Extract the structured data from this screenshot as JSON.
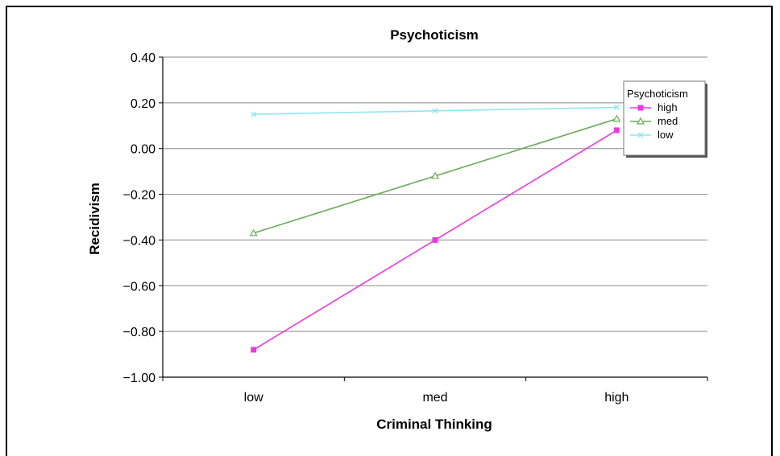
{
  "chart_data": {
    "type": "line",
    "title": "Psychoticism",
    "xlabel": "Criminal Thinking",
    "ylabel": "Recidivism",
    "categories": [
      "low",
      "med",
      "high"
    ],
    "ylim": [
      -1.0,
      0.4
    ],
    "yticks": [
      "0.40",
      "0.20",
      "0.00",
      "−0.20",
      "−0.40",
      "−0.60",
      "−0.80",
      "−1.00"
    ],
    "ytick_values": [
      0.4,
      0.2,
      0.0,
      -0.2,
      -0.4,
      -0.6,
      -0.8,
      -1.0
    ],
    "grid": true,
    "legend": {
      "title": "Psychoticism",
      "placement": "right"
    },
    "series": [
      {
        "name": "high",
        "values": [
          -0.88,
          -0.4,
          0.08
        ],
        "color": "#e83ae0",
        "marker": "square"
      },
      {
        "name": "med",
        "values": [
          -0.37,
          -0.12,
          0.13
        ],
        "color": "#6aaa5a",
        "marker": "triangle"
      },
      {
        "name": "low",
        "values": [
          0.15,
          0.165,
          0.18
        ],
        "color": "#8fe6ee",
        "marker": "x"
      }
    ]
  }
}
